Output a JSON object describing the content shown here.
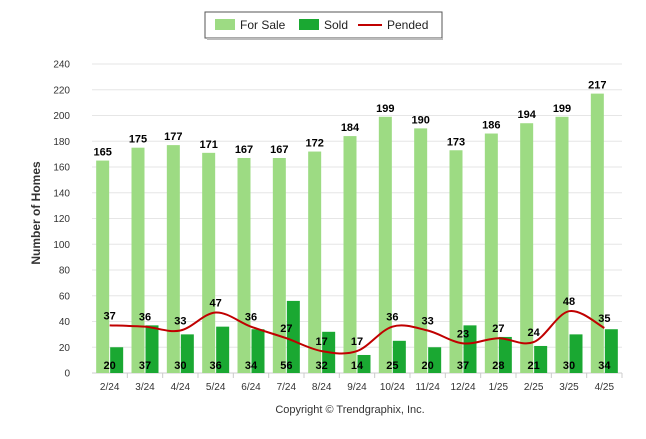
{
  "chart_data": {
    "type": "bar",
    "title": "",
    "ylabel": "Number of Homes",
    "xlabel": "",
    "ylim": [
      0,
      240
    ],
    "ytick_step": 20,
    "grid": true,
    "legend_placement": "top-center",
    "categories": [
      "2/24",
      "3/24",
      "4/24",
      "5/24",
      "6/24",
      "7/24",
      "8/24",
      "9/24",
      "10/24",
      "11/24",
      "12/24",
      "1/25",
      "2/25",
      "3/25",
      "4/25"
    ],
    "series": [
      {
        "name": "For Sale",
        "kind": "bar",
        "color": "#9ddb83",
        "values": [
          165,
          175,
          177,
          171,
          167,
          167,
          172,
          184,
          199,
          190,
          173,
          186,
          194,
          199,
          217
        ]
      },
      {
        "name": "Sold",
        "kind": "bar",
        "color": "#1aa832",
        "values": [
          20,
          37,
          30,
          36,
          34,
          56,
          32,
          14,
          25,
          20,
          37,
          28,
          21,
          30,
          34
        ]
      },
      {
        "name": "Pended",
        "kind": "line",
        "color": "#c00000",
        "values": [
          37,
          36,
          33,
          47,
          36,
          27,
          17,
          17,
          36,
          33,
          23,
          27,
          24,
          48,
          35
        ]
      }
    ],
    "footer": "Copyright © Trendgraphix, Inc."
  }
}
